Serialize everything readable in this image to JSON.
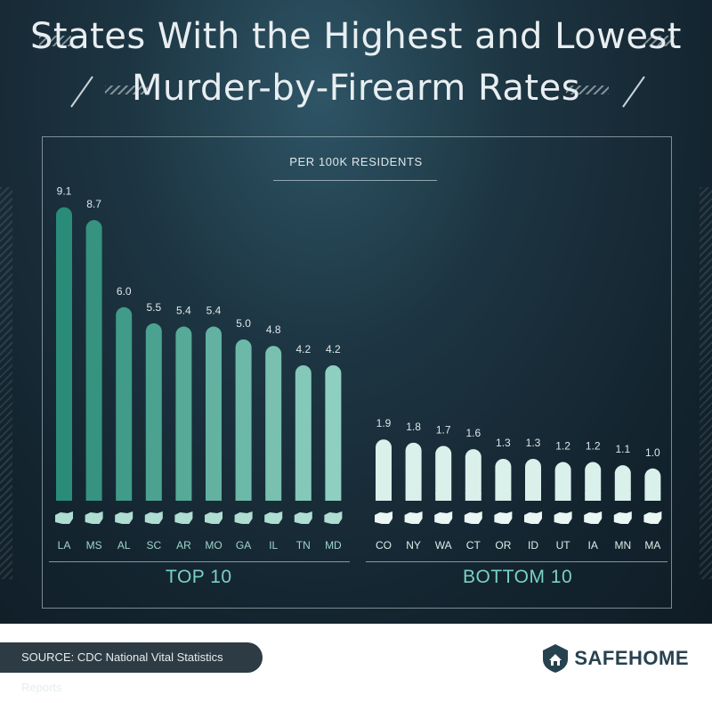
{
  "title_line1": "States With the Highest and Lowest",
  "title_line2": "Murder-by-Firearm Rates",
  "chart_data": {
    "type": "bar",
    "subtitle": "PER 100K RESIDENTS",
    "groups": [
      {
        "name": "TOP 10",
        "categories": [
          "LA",
          "MS",
          "AL",
          "SC",
          "AR",
          "MO",
          "GA",
          "IL",
          "TN",
          "MD"
        ],
        "values": [
          9.1,
          8.7,
          6.0,
          5.5,
          5.4,
          5.4,
          5.0,
          4.8,
          4.2,
          4.2
        ],
        "value_labels": [
          "9.1",
          "8.7",
          "6.0",
          "5.5",
          "5.4",
          "5.4",
          "5.0",
          "4.8",
          "4.2",
          "4.2"
        ]
      },
      {
        "name": "BOTTOM 10",
        "categories": [
          "CO",
          "NY",
          "WA",
          "CT",
          "OR",
          "ID",
          "UT",
          "IA",
          "MN",
          "MA"
        ],
        "values": [
          1.9,
          1.8,
          1.7,
          1.6,
          1.3,
          1.3,
          1.2,
          1.2,
          1.1,
          1.0
        ],
        "value_labels": [
          "1.9",
          "1.8",
          "1.7",
          "1.6",
          "1.3",
          "1.3",
          "1.2",
          "1.2",
          "1.1",
          "1.0"
        ]
      }
    ],
    "colors": {
      "top_start": "#2a8c78",
      "top_end": "#8fcfc1",
      "bottom": "#d9f0eb",
      "label": "#dfe7ea"
    }
  },
  "source": "SOURCE: CDC National Vital Statistics Reports",
  "logo": {
    "text": "SAFEHOME",
    "icon": "house-shield-icon"
  }
}
